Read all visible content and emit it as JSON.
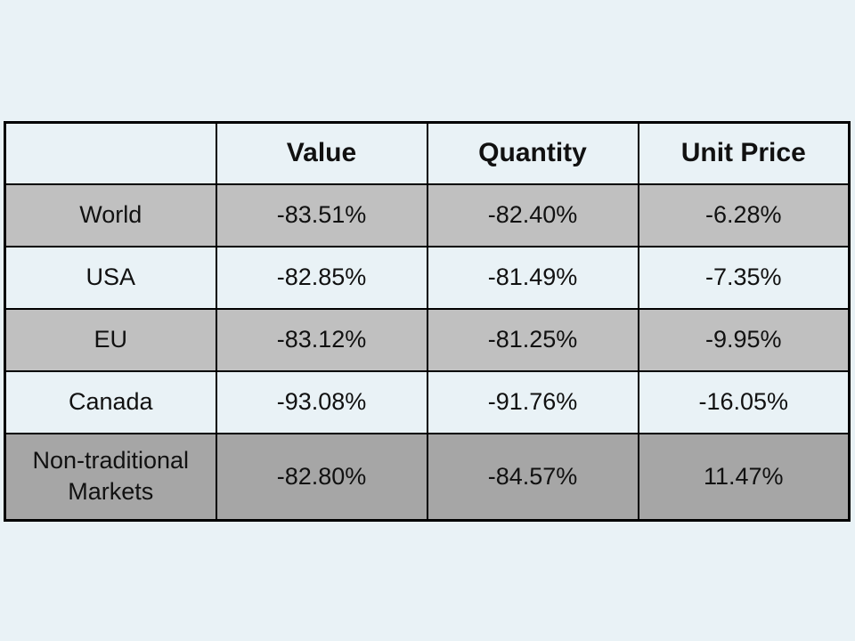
{
  "colors": {
    "background": "#e9f2f6",
    "row_gray": "#c0c0c0",
    "row_dark_gray": "#a6a6a6",
    "border": "#000000",
    "text": "#111111"
  },
  "table": {
    "columns": [
      "",
      "Value",
      "Quantity",
      "Unit Price"
    ],
    "rows": [
      {
        "label": "World",
        "value": "-83.51%",
        "quantity": "-82.40%",
        "unit_price": "-6.28%"
      },
      {
        "label": "USA",
        "value": "-82.85%",
        "quantity": "-81.49%",
        "unit_price": "-7.35%"
      },
      {
        "label": "EU",
        "value": "-83.12%",
        "quantity": "-81.25%",
        "unit_price": "-9.95%"
      },
      {
        "label": "Canada",
        "value": "-93.08%",
        "quantity": "-91.76%",
        "unit_price": "-16.05%"
      },
      {
        "label": "Non-traditional Markets",
        "value": "-82.80%",
        "quantity": "-84.57%",
        "unit_price": "11.47%"
      }
    ]
  },
  "chart_data": {
    "type": "table",
    "title": "",
    "columns": [
      "",
      "Value",
      "Quantity",
      "Unit Price"
    ],
    "rows": [
      [
        "World",
        "-83.51%",
        "-82.40%",
        "-6.28%"
      ],
      [
        "USA",
        "-82.85%",
        "-81.49%",
        "-7.35%"
      ],
      [
        "EU",
        "-83.12%",
        "-81.25%",
        "-9.95%"
      ],
      [
        "Canada",
        "-93.08%",
        "-91.76%",
        "-16.05%"
      ],
      [
        "Non-traditional Markets",
        "-82.80%",
        "-84.57%",
        "11.47%"
      ]
    ],
    "series": [
      {
        "name": "Value",
        "values": [
          -83.51,
          -82.85,
          -83.12,
          -93.08,
          -82.8
        ]
      },
      {
        "name": "Quantity",
        "values": [
          -82.4,
          -81.49,
          -81.25,
          -91.76,
          -84.57
        ]
      },
      {
        "name": "Unit Price",
        "values": [
          -6.28,
          -7.35,
          -9.95,
          -16.05,
          11.47
        ]
      }
    ],
    "categories": [
      "World",
      "USA",
      "EU",
      "Canada",
      "Non-traditional Markets"
    ],
    "units": "percent"
  }
}
